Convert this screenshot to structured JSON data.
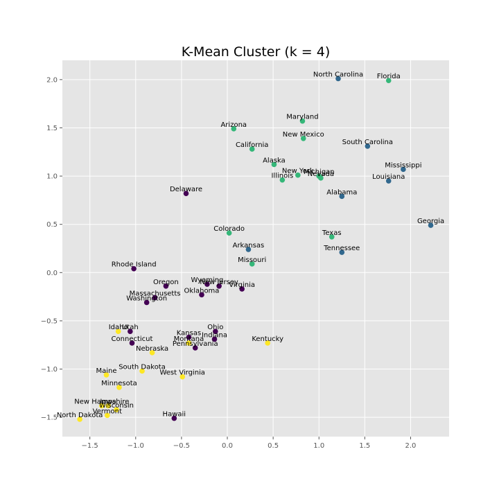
{
  "chart_data": {
    "type": "scatter",
    "title": "K-Mean Cluster (k = 4)",
    "xlabel": "",
    "ylabel": "",
    "xlim": [
      -1.8,
      2.42
    ],
    "ylim": [
      -1.7,
      2.2
    ],
    "xticks": [
      -1.5,
      -1.0,
      -0.5,
      0.0,
      0.5,
      1.0,
      1.5,
      2.0
    ],
    "yticks": [
      -1.5,
      -1.0,
      -0.5,
      0.0,
      0.5,
      1.0,
      1.5,
      2.0
    ],
    "xtick_labels": [
      "−1.5",
      "−1.0",
      "−0.5",
      "0.0",
      "0.5",
      "1.0",
      "1.5",
      "2.0"
    ],
    "ytick_labels": [
      "−1.5",
      "−1.0",
      "−0.5",
      "0.0",
      "0.5",
      "1.0",
      "1.5",
      "2.0"
    ],
    "grid": true,
    "background": "#e5e5e5",
    "cluster_colors": [
      "#440154",
      "#31688e",
      "#35b779",
      "#fde725"
    ],
    "points": [
      {
        "label": "North Carolina",
        "x": 1.21,
        "y": 2.01,
        "cluster": 1
      },
      {
        "label": "Florida",
        "x": 1.76,
        "y": 1.99,
        "cluster": 2
      },
      {
        "label": "Maryland",
        "x": 0.82,
        "y": 1.57,
        "cluster": 2
      },
      {
        "label": "Arizona",
        "x": 0.07,
        "y": 1.49,
        "cluster": 2
      },
      {
        "label": "New Mexico",
        "x": 0.83,
        "y": 1.39,
        "cluster": 2
      },
      {
        "label": "South Carolina",
        "x": 1.53,
        "y": 1.31,
        "cluster": 1
      },
      {
        "label": "California",
        "x": 0.27,
        "y": 1.28,
        "cluster": 2
      },
      {
        "label": "Alaska",
        "x": 0.51,
        "y": 1.12,
        "cluster": 2
      },
      {
        "label": "Mississippi",
        "x": 1.92,
        "y": 1.07,
        "cluster": 1
      },
      {
        "label": "New York",
        "x": 0.77,
        "y": 1.01,
        "cluster": 2
      },
      {
        "label": "Michigan",
        "x": 1.0,
        "y": 1.0,
        "cluster": 2
      },
      {
        "label": "Nevada",
        "x": 1.02,
        "y": 0.98,
        "cluster": 2
      },
      {
        "label": "Illinois",
        "x": 0.6,
        "y": 0.96,
        "cluster": 2
      },
      {
        "label": "Louisiana",
        "x": 1.76,
        "y": 0.95,
        "cluster": 1
      },
      {
        "label": "Delaware",
        "x": -0.45,
        "y": 0.82,
        "cluster": 0
      },
      {
        "label": "Alabama",
        "x": 1.25,
        "y": 0.79,
        "cluster": 1
      },
      {
        "label": "Georgia",
        "x": 2.22,
        "y": 0.49,
        "cluster": 1
      },
      {
        "label": "Colorado",
        "x": 0.02,
        "y": 0.41,
        "cluster": 2
      },
      {
        "label": "Texas",
        "x": 1.14,
        "y": 0.37,
        "cluster": 2
      },
      {
        "label": "Arkansas",
        "x": 0.23,
        "y": 0.24,
        "cluster": 1
      },
      {
        "label": "Tennessee",
        "x": 1.25,
        "y": 0.21,
        "cluster": 1
      },
      {
        "label": "Missouri",
        "x": 0.27,
        "y": 0.09,
        "cluster": 2
      },
      {
        "label": "Rhode Island",
        "x": -1.02,
        "y": 0.04,
        "cluster": 0
      },
      {
        "label": "Wyoming",
        "x": -0.22,
        "y": -0.12,
        "cluster": 0
      },
      {
        "label": "Oregon",
        "x": -0.67,
        "y": -0.14,
        "cluster": 0
      },
      {
        "label": "New Jersey",
        "x": -0.09,
        "y": -0.14,
        "cluster": 0
      },
      {
        "label": "Virginia",
        "x": 0.16,
        "y": -0.17,
        "cluster": 0
      },
      {
        "label": "Oklahoma",
        "x": -0.28,
        "y": -0.23,
        "cluster": 0
      },
      {
        "label": "Massachusetts",
        "x": -0.79,
        "y": -0.26,
        "cluster": 0
      },
      {
        "label": "Washington",
        "x": -0.88,
        "y": -0.31,
        "cluster": 0
      },
      {
        "label": "Idaho",
        "x": -1.19,
        "y": -0.61,
        "cluster": 3
      },
      {
        "label": "Utah",
        "x": -1.06,
        "y": -0.61,
        "cluster": 0
      },
      {
        "label": "Ohio",
        "x": -0.13,
        "y": -0.61,
        "cluster": 0
      },
      {
        "label": "Kansas",
        "x": -0.42,
        "y": -0.67,
        "cluster": 0
      },
      {
        "label": "Indiana",
        "x": -0.14,
        "y": -0.69,
        "cluster": 0
      },
      {
        "label": "Connecticut",
        "x": -1.04,
        "y": -0.73,
        "cluster": 0
      },
      {
        "label": "Kentucky",
        "x": 0.44,
        "y": -0.73,
        "cluster": 3
      },
      {
        "label": "Montana",
        "x": -0.42,
        "y": -0.73,
        "cluster": 3
      },
      {
        "label": "Pennsylvania",
        "x": -0.35,
        "y": -0.78,
        "cluster": 0
      },
      {
        "label": "Nebraska",
        "x": -0.82,
        "y": -0.83,
        "cluster": 3
      },
      {
        "label": "South Dakota",
        "x": -0.93,
        "y": -1.02,
        "cluster": 3
      },
      {
        "label": "Maine",
        "x": -1.32,
        "y": -1.06,
        "cluster": 3
      },
      {
        "label": "West Virginia",
        "x": -0.49,
        "y": -1.08,
        "cluster": 3
      },
      {
        "label": "Minnesota",
        "x": -1.18,
        "y": -1.19,
        "cluster": 3
      },
      {
        "label": "New Hampshire",
        "x": -1.37,
        "y": -1.38,
        "cluster": 3
      },
      {
        "label": "Iowa",
        "x": -1.3,
        "y": -1.38,
        "cluster": 3
      },
      {
        "label": "Wisconsin",
        "x": -1.21,
        "y": -1.42,
        "cluster": 3
      },
      {
        "label": "Vermont",
        "x": -1.31,
        "y": -1.48,
        "cluster": 3
      },
      {
        "label": "North Dakota",
        "x": -1.61,
        "y": -1.52,
        "cluster": 3
      },
      {
        "label": "Hawaii",
        "x": -0.58,
        "y": -1.51,
        "cluster": 0
      }
    ]
  }
}
